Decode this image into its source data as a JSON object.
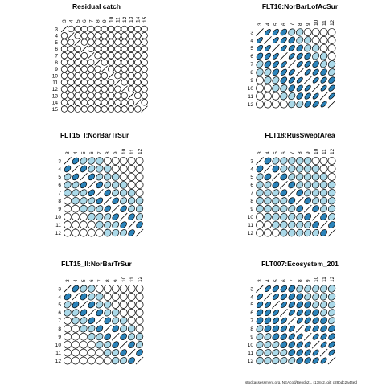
{
  "footer": "stockassessment.org, NEAcod/Bench21, r13842, git: c28bdc2a44ed",
  "colors": {
    "positive": "#2b83ba",
    "fill_light": "#abd9e9",
    "outline": "#000000",
    "background": "#ffffff"
  },
  "chart_data": [
    {
      "type": "heatmap",
      "subtype": "correlation ellipse matrix",
      "title": "Residual catch",
      "ages": [
        "3",
        "4",
        "5",
        "6",
        "7",
        "8",
        "9",
        "10",
        "11",
        "12",
        "13",
        "14",
        "15"
      ],
      "diagonal": "line",
      "correlations": [
        [
          1,
          0,
          0,
          0,
          0,
          0,
          0,
          0,
          0,
          0,
          0,
          0,
          0
        ],
        [
          0,
          1,
          0.05,
          0,
          0,
          0,
          0,
          0,
          0,
          0,
          0,
          0,
          0
        ],
        [
          0,
          0.05,
          1,
          0.05,
          0,
          0,
          0,
          0,
          0,
          0,
          0,
          0,
          0
        ],
        [
          0,
          0,
          0.05,
          1,
          0,
          0,
          0,
          0,
          0,
          0,
          0,
          0,
          0
        ],
        [
          0,
          0,
          0,
          0,
          1,
          0.05,
          0,
          0,
          0,
          0,
          0,
          0,
          0
        ],
        [
          0,
          0,
          0,
          0,
          0.05,
          1,
          0,
          0,
          0,
          0,
          0,
          0,
          0
        ],
        [
          0,
          0,
          0,
          0,
          0,
          0,
          1,
          0.1,
          0,
          0,
          0,
          0,
          0
        ],
        [
          0,
          0,
          0,
          0,
          0,
          0,
          0.1,
          1,
          0,
          0,
          0,
          0,
          0
        ],
        [
          0,
          0,
          0,
          0,
          0,
          0,
          0,
          0,
          1,
          0.05,
          0,
          0,
          0
        ],
        [
          0,
          0,
          0,
          0,
          0,
          0,
          0,
          0,
          0.05,
          1,
          0,
          0,
          0
        ],
        [
          0,
          0,
          0,
          0,
          0,
          0,
          0,
          0,
          0,
          0,
          1,
          0,
          0
        ],
        [
          0,
          0,
          0,
          0,
          0,
          0,
          0,
          0,
          0,
          0,
          0,
          1,
          0
        ],
        [
          0,
          0,
          0,
          0,
          0,
          0,
          0,
          0,
          0,
          0,
          0,
          0,
          1
        ]
      ]
    },
    {
      "type": "heatmap",
      "subtype": "correlation ellipse matrix",
      "title": "FLT16:NorBarLofAcSur",
      "ages": [
        "3",
        "4",
        "5",
        "6",
        "7",
        "8",
        "9",
        "10",
        "11",
        "12"
      ],
      "diagonal": "line",
      "correlations": [
        [
          1,
          0.85,
          0.75,
          0.6,
          0.4,
          0.25,
          0.1,
          0,
          0,
          0
        ],
        [
          0.85,
          1,
          0.85,
          0.75,
          0.6,
          0.4,
          0.25,
          0.1,
          0,
          0
        ],
        [
          0.75,
          0.85,
          1,
          0.85,
          0.75,
          0.6,
          0.4,
          0.25,
          0.1,
          0
        ],
        [
          0.6,
          0.75,
          0.85,
          1,
          0.85,
          0.75,
          0.6,
          0.4,
          0.25,
          0.1
        ],
        [
          0.4,
          0.6,
          0.75,
          0.85,
          1,
          0.85,
          0.75,
          0.6,
          0.4,
          0.25
        ],
        [
          0.25,
          0.4,
          0.6,
          0.75,
          0.85,
          1,
          0.85,
          0.75,
          0.6,
          0.4
        ],
        [
          0.1,
          0.25,
          0.4,
          0.6,
          0.75,
          0.85,
          1,
          0.85,
          0.75,
          0.6
        ],
        [
          0,
          0.1,
          0.25,
          0.4,
          0.6,
          0.75,
          0.85,
          1,
          0.85,
          0.75
        ],
        [
          0,
          0,
          0.1,
          0.25,
          0.4,
          0.6,
          0.75,
          0.85,
          1,
          0.85
        ],
        [
          0,
          0,
          0,
          0.1,
          0.25,
          0.4,
          0.6,
          0.75,
          0.85,
          1
        ]
      ]
    },
    {
      "type": "heatmap",
      "subtype": "correlation ellipse matrix",
      "title": "FLT15_I:NorBarTrSur_",
      "ages": [
        "3",
        "4",
        "5",
        "6",
        "7",
        "8",
        "9",
        "10",
        "11",
        "12"
      ],
      "diagonal": "line",
      "correlations": [
        [
          1,
          0.6,
          0.45,
          0.3,
          0.15,
          0.05,
          0,
          0,
          0,
          0
        ],
        [
          0.6,
          1,
          0.6,
          0.45,
          0.3,
          0.15,
          0.05,
          0,
          0,
          0
        ],
        [
          0.45,
          0.6,
          1,
          0.6,
          0.45,
          0.3,
          0.15,
          0.05,
          0,
          0
        ],
        [
          0.3,
          0.45,
          0.6,
          1,
          0.6,
          0.45,
          0.3,
          0.15,
          0.05,
          0
        ],
        [
          0.15,
          0.3,
          0.45,
          0.6,
          1,
          0.6,
          0.45,
          0.3,
          0.15,
          0.05
        ],
        [
          0.05,
          0.15,
          0.3,
          0.45,
          0.6,
          1,
          0.6,
          0.45,
          0.3,
          0.15
        ],
        [
          0,
          0.05,
          0.15,
          0.3,
          0.45,
          0.6,
          1,
          0.6,
          0.45,
          0.3
        ],
        [
          0,
          0,
          0.05,
          0.15,
          0.3,
          0.45,
          0.6,
          1,
          0.6,
          0.45
        ],
        [
          0,
          0,
          0,
          0.05,
          0.15,
          0.3,
          0.45,
          0.6,
          1,
          0.6
        ],
        [
          0,
          0,
          0,
          0,
          0.05,
          0.15,
          0.3,
          0.45,
          0.6,
          1
        ]
      ]
    },
    {
      "type": "heatmap",
      "subtype": "correlation ellipse matrix",
      "title": "FLT18:RusSweptArea",
      "ages": [
        "3",
        "4",
        "5",
        "6",
        "7",
        "8",
        "9",
        "10",
        "11",
        "12"
      ],
      "diagonal": "line",
      "correlations": [
        [
          1,
          0.5,
          0.4,
          0.3,
          0.25,
          0.2,
          0.15,
          0.1,
          0.05,
          0
        ],
        [
          0.5,
          1,
          0.5,
          0.4,
          0.3,
          0.25,
          0.2,
          0.15,
          0.1,
          0.05
        ],
        [
          0.4,
          0.5,
          1,
          0.5,
          0.4,
          0.3,
          0.25,
          0.2,
          0.15,
          0.1
        ],
        [
          0.3,
          0.4,
          0.5,
          1,
          0.5,
          0.4,
          0.3,
          0.25,
          0.2,
          0.15
        ],
        [
          0.25,
          0.3,
          0.4,
          0.5,
          1,
          0.5,
          0.4,
          0.3,
          0.25,
          0.2
        ],
        [
          0.2,
          0.25,
          0.3,
          0.4,
          0.5,
          1,
          0.5,
          0.4,
          0.3,
          0.25
        ],
        [
          0.15,
          0.2,
          0.25,
          0.3,
          0.4,
          0.5,
          1,
          0.5,
          0.4,
          0.3
        ],
        [
          0.1,
          0.15,
          0.2,
          0.25,
          0.3,
          0.4,
          0.5,
          1,
          0.5,
          0.4
        ],
        [
          0.05,
          0.1,
          0.15,
          0.2,
          0.25,
          0.3,
          0.4,
          0.5,
          1,
          0.5
        ],
        [
          0,
          0.05,
          0.1,
          0.15,
          0.2,
          0.25,
          0.3,
          0.4,
          0.5,
          1
        ]
      ]
    },
    {
      "type": "heatmap",
      "subtype": "correlation ellipse matrix",
      "title": "FLT15_II:NorBarTrSur",
      "ages": [
        "3",
        "4",
        "5",
        "6",
        "7",
        "8",
        "9",
        "10",
        "11",
        "12"
      ],
      "diagonal": "line",
      "correlations": [
        [
          1,
          0.55,
          0.4,
          0.25,
          0.1,
          0,
          0,
          0,
          0,
          0
        ],
        [
          0.55,
          1,
          0.55,
          0.4,
          0.25,
          0.1,
          0,
          0,
          0,
          0
        ],
        [
          0.4,
          0.55,
          1,
          0.55,
          0.4,
          0.25,
          0.1,
          0,
          0,
          0
        ],
        [
          0.25,
          0.4,
          0.55,
          1,
          0.55,
          0.4,
          0.25,
          0.1,
          0,
          0
        ],
        [
          0.1,
          0.25,
          0.4,
          0.55,
          1,
          0.55,
          0.4,
          0.25,
          0.1,
          0
        ],
        [
          0,
          0.1,
          0.25,
          0.4,
          0.55,
          1,
          0.55,
          0.4,
          0.25,
          0.1
        ],
        [
          0,
          0,
          0.1,
          0.25,
          0.4,
          0.55,
          1,
          0.55,
          0.4,
          0.25
        ],
        [
          0,
          0,
          0,
          0.1,
          0.25,
          0.4,
          0.55,
          1,
          0.55,
          0.4
        ],
        [
          0,
          0,
          0,
          0,
          0.1,
          0.25,
          0.4,
          0.55,
          1,
          0.55
        ],
        [
          0,
          0,
          0,
          0,
          0,
          0.1,
          0.25,
          0.4,
          0.55,
          1
        ]
      ]
    },
    {
      "type": "heatmap",
      "subtype": "correlation ellipse matrix",
      "title": "FLT007:Ecosystem_201",
      "ages": [
        "3",
        "4",
        "5",
        "6",
        "7",
        "8",
        "9",
        "10",
        "11",
        "12"
      ],
      "diagonal": "line",
      "correlations": [
        [
          1,
          0.8,
          0.7,
          0.6,
          0.5,
          0.45,
          0.4,
          0.35,
          0.3,
          0.25
        ],
        [
          0.8,
          1,
          0.8,
          0.7,
          0.6,
          0.5,
          0.45,
          0.4,
          0.35,
          0.3
        ],
        [
          0.7,
          0.8,
          1,
          0.8,
          0.7,
          0.6,
          0.5,
          0.45,
          0.4,
          0.35
        ],
        [
          0.6,
          0.7,
          0.8,
          1,
          0.8,
          0.7,
          0.6,
          0.5,
          0.45,
          0.4
        ],
        [
          0.5,
          0.6,
          0.7,
          0.8,
          1,
          0.8,
          0.7,
          0.6,
          0.5,
          0.45
        ],
        [
          0.45,
          0.5,
          0.6,
          0.7,
          0.8,
          1,
          0.8,
          0.7,
          0.6,
          0.5
        ],
        [
          0.4,
          0.45,
          0.5,
          0.6,
          0.7,
          0.8,
          1,
          0.8,
          0.7,
          0.6
        ],
        [
          0.35,
          0.4,
          0.45,
          0.5,
          0.6,
          0.7,
          0.8,
          1,
          0.8,
          0.7
        ],
        [
          0.3,
          0.35,
          0.4,
          0.45,
          0.5,
          0.6,
          0.7,
          0.8,
          1,
          0.8
        ],
        [
          0.25,
          0.3,
          0.35,
          0.4,
          0.45,
          0.5,
          0.6,
          0.7,
          0.8,
          1
        ]
      ]
    }
  ]
}
